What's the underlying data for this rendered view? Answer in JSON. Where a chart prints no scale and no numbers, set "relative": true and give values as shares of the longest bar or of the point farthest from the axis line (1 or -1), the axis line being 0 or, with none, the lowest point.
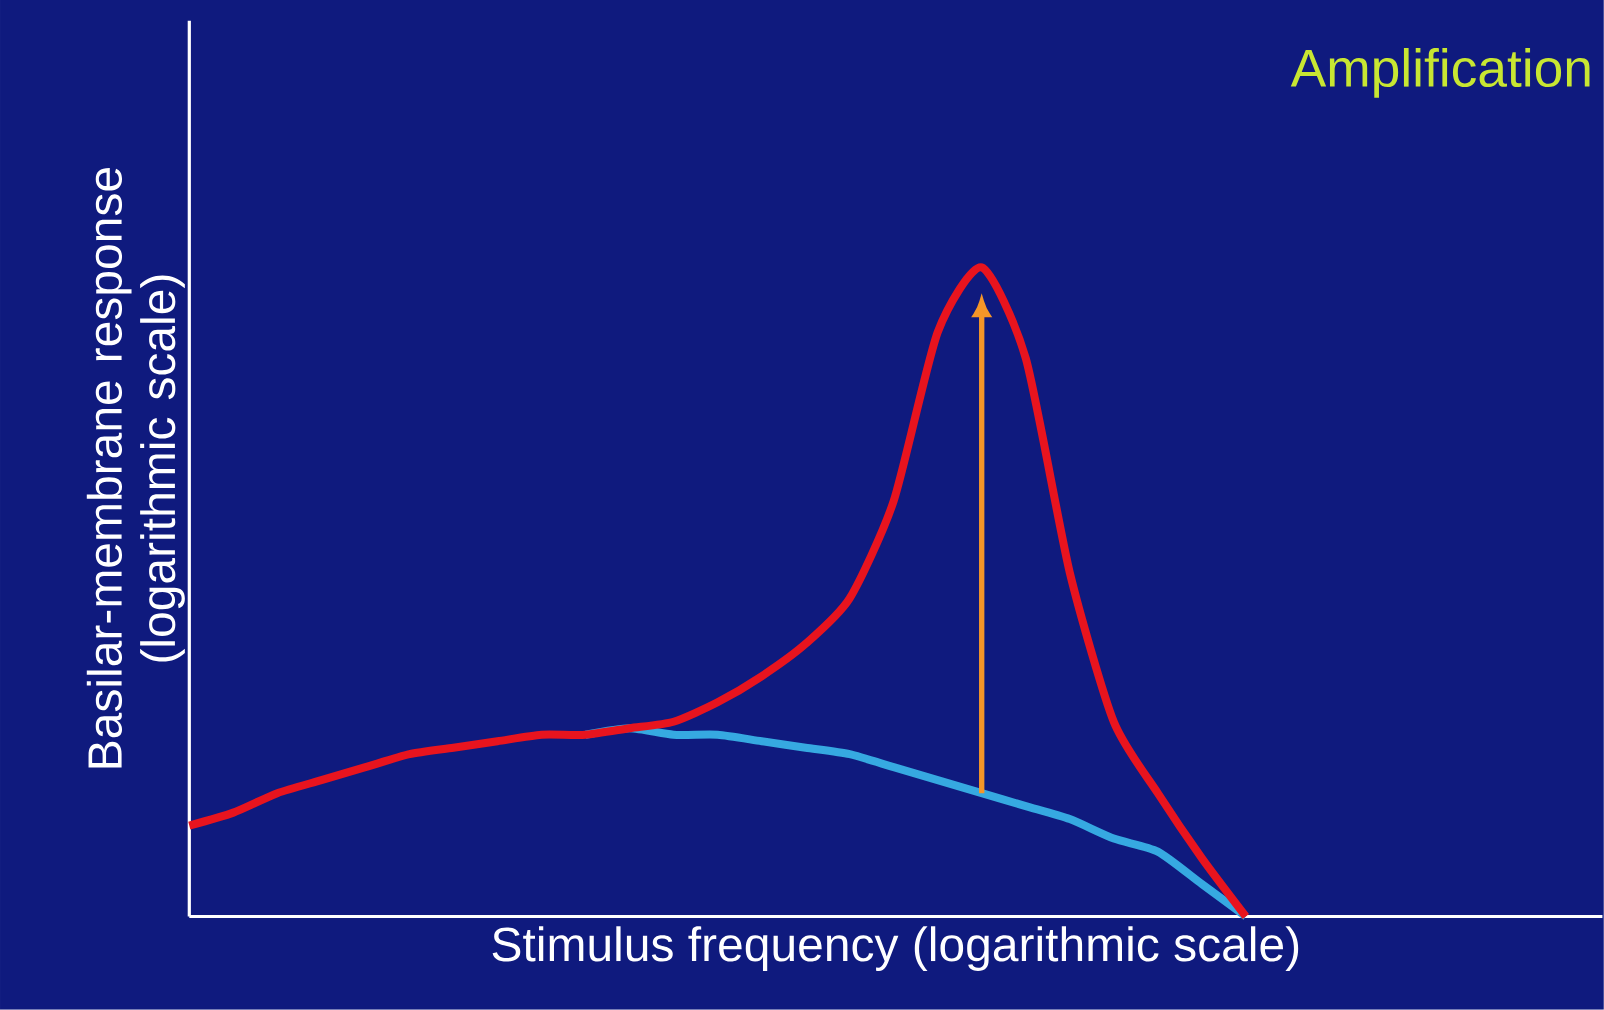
{
  "chart_data": {
    "type": "line",
    "relative": true,
    "xlabel": "Stimulus frequency (logarithmic scale)",
    "ylabel": "Basilar-membrane response (logarithmic scale)",
    "annotations": [
      "Amplification"
    ],
    "categories": [
      null,
      null,
      null,
      null,
      null,
      null,
      null,
      null,
      null,
      null,
      null,
      null,
      null,
      null,
      null,
      null,
      null,
      null,
      null,
      null,
      null,
      null,
      null,
      null,
      null,
      null,
      null,
      null,
      null,
      null,
      null,
      null,
      null
    ],
    "series": [
      {
        "color": "#e8141e",
        "values": [
          0.14,
          0.16,
          0.19,
          0.21,
          0.23,
          0.25,
          0.26,
          0.27,
          0.28,
          0.28,
          0.29,
          0.3,
          0.33,
          0.37,
          0.42,
          0.49,
          0.64,
          0.9,
          1,
          0.86,
          0.53,
          0.3,
          0.19,
          0.09,
          0,
          null,
          null,
          null,
          null,
          null,
          null,
          null,
          null
        ]
      },
      {
        "color": "#36a9e1",
        "values": [
          null,
          null,
          null,
          null,
          null,
          null,
          null,
          null,
          null,
          0.28,
          0.29,
          0.28,
          0.28,
          0.27,
          0.26,
          0.25,
          0.23,
          0.21,
          0.19,
          0.17,
          0.15,
          0.12,
          0.1,
          0.05,
          0,
          null,
          null,
          null,
          null,
          null,
          null,
          null,
          null
        ]
      }
    ],
    "marker": "none",
    "line_style": "solid"
  }
}
